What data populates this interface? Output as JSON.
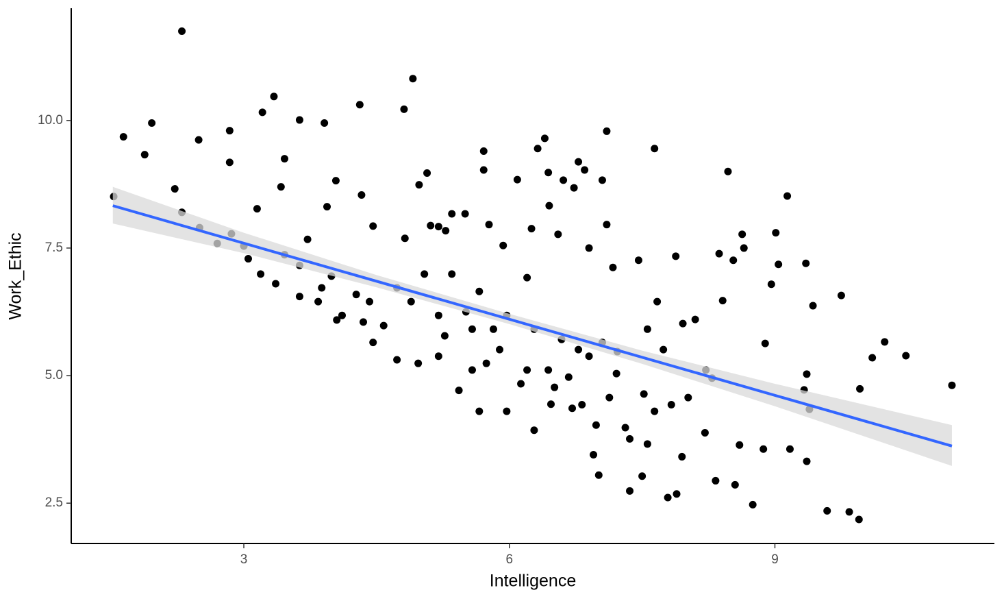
{
  "chart_data": {
    "type": "scatter",
    "x_label": "Intelligence",
    "y_label": "Work_Ethic",
    "xlim": [
      1.05,
      11.48
    ],
    "ylim": [
      1.71,
      12.2
    ],
    "xticks": [
      3,
      6,
      9
    ],
    "yticks": [
      2.5,
      {
        "value": 5,
        "label": "5.0"
      },
      7.5,
      {
        "value": 10,
        "label": "10.0"
      }
    ],
    "point_color": "#000000",
    "points": {
      "x": [
        1.53,
        1.64,
        1.88,
        1.96,
        2.22,
        2.3,
        2.3,
        2.49,
        2.5,
        2.7,
        2.84,
        2.84,
        2.86,
        3.0,
        3.05,
        3.15,
        3.21,
        3.19,
        3.34,
        3.36,
        3.42,
        3.46,
        3.46,
        3.63,
        3.63,
        3.63,
        3.72,
        3.84,
        3.91,
        3.94,
        3.99,
        4.04,
        4.05,
        4.31,
        4.33,
        4.46,
        4.81,
        4.91,
        4.98,
        5.07,
        5.11,
        5.28,
        5.35,
        5.5,
        5.71,
        5.71,
        5.77,
        6.09,
        6.2,
        6.32,
        6.4,
        6.44,
        6.45,
        6.61,
        6.73,
        6.78,
        6.85,
        6.9,
        7.05,
        7.1,
        7.1,
        7.17,
        7.46,
        7.64,
        7.67,
        7.88,
        7.96,
        8.1,
        8.37,
        8.41,
        8.47,
        8.53,
        8.63,
        8.65,
        8.96,
        9.01,
        9.04,
        9.14,
        9.35,
        9.43,
        9.75,
        10.1,
        10.24,
        10.48,
        11.0,
        9.96,
        9.33,
        9.36,
        9.39,
        9.36,
        9.59,
        9.84,
        9.95,
        8.75,
        8.87,
        9.17,
        8.89,
        8.6,
        8.33,
        8.55,
        8.21,
        7.89,
        7.95,
        7.79,
        7.36,
        7.5,
        7.01,
        6.95,
        7.31,
        7.56,
        7.64,
        8.29,
        8.02,
        8.22,
        7.74,
        7.56,
        7.22,
        7.05,
        6.78,
        6.67,
        6.71,
        6.47,
        6.28,
        6.13,
        5.74,
        5.58,
        5.43,
        5.2,
        4.97,
        4.73,
        4.46,
        4.35,
        4.11,
        3.88,
        4.42,
        4.73,
        5.04,
        5.35,
        5.66,
        5.97,
        6.28,
        6.59,
        6.9,
        7.21,
        7.52,
        7.83,
        6.98,
        7.13,
        5.66,
        5.97,
        6.44,
        5.82,
        5.51,
        5.2,
        4.89,
        4.58,
        4.27,
        5.27,
        5.58,
        5.89,
        6.2,
        6.51,
        6.82,
        7.36,
        4.82,
        5.2,
        5.93,
        6.55,
        6.25
      ],
      "y": [
        8.51,
        9.68,
        9.33,
        9.95,
        8.66,
        11.75,
        8.2,
        9.62,
        7.9,
        7.59,
        9.8,
        9.18,
        7.78,
        7.54,
        7.29,
        8.27,
        10.16,
        6.99,
        10.47,
        6.8,
        8.7,
        9.25,
        7.37,
        7.16,
        10.01,
        6.55,
        7.67,
        6.45,
        9.95,
        8.31,
        6.95,
        8.82,
        6.09,
        10.31,
        8.54,
        7.93,
        10.22,
        10.82,
        8.74,
        8.97,
        7.94,
        7.84,
        8.17,
        8.17,
        9.4,
        9.03,
        7.96,
        8.84,
        6.92,
        9.45,
        9.65,
        8.98,
        8.33,
        8.83,
        8.68,
        9.19,
        9.03,
        7.5,
        8.83,
        9.79,
        7.96,
        7.12,
        7.26,
        9.45,
        6.45,
        7.34,
        6.02,
        6.1,
        7.39,
        6.47,
        9.0,
        7.26,
        7.77,
        7.5,
        6.79,
        7.8,
        7.18,
        8.52,
        7.2,
        6.37,
        6.57,
        5.35,
        5.66,
        5.39,
        4.81,
        4.74,
        4.72,
        5.03,
        4.34,
        3.32,
        2.35,
        2.33,
        2.18,
        2.47,
        3.56,
        3.56,
        5.63,
        3.64,
        2.94,
        2.86,
        3.88,
        2.68,
        3.41,
        2.61,
        2.74,
        3.03,
        3.05,
        3.45,
        3.98,
        3.66,
        4.3,
        4.95,
        4.57,
        5.11,
        5.51,
        5.91,
        5.47,
        5.65,
        5.51,
        4.97,
        4.36,
        4.44,
        3.93,
        4.84,
        5.24,
        5.11,
        4.71,
        5.38,
        5.24,
        5.31,
        5.65,
        6.05,
        6.18,
        6.72,
        6.45,
        6.72,
        6.99,
        6.99,
        6.65,
        6.18,
        5.91,
        5.71,
        5.38,
        5.04,
        4.64,
        4.43,
        4.03,
        4.57,
        4.3,
        4.3,
        5.11,
        5.91,
        6.25,
        6.18,
        6.45,
        5.98,
        6.59,
        5.78,
        5.91,
        5.51,
        5.11,
        4.77,
        4.43,
        3.76,
        7.69,
        7.92,
        7.55,
        7.77,
        7.88
      ]
    },
    "band": {
      "color": "#d9d9d9",
      "x": [
        1.52,
        3,
        4.5,
        6,
        7.5,
        9,
        11.0
      ],
      "lower": [
        7.98,
        7.4,
        6.73,
        6.01,
        5.23,
        4.4,
        3.23
      ],
      "upper": [
        8.7,
        7.8,
        6.97,
        6.21,
        5.49,
        4.84,
        4.03
      ]
    },
    "fit": {
      "color": "#3366ff",
      "x": [
        1.52,
        11.0
      ],
      "y": [
        8.33,
        3.62
      ]
    }
  }
}
